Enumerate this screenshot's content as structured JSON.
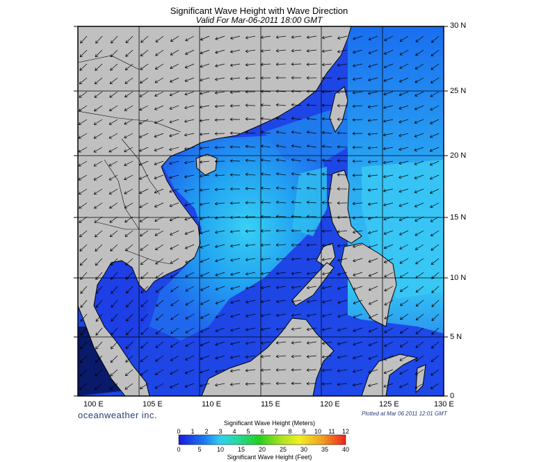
{
  "title": "Significant Wave Height with Wave Direction",
  "subtitle": "Valid For Mar-06-2011 18:00 GMT",
  "lat_labels": [
    "30 N",
    "25 N",
    "20 N",
    "15 N",
    "10 N",
    "5 N",
    "0"
  ],
  "lon_labels": [
    "100 E",
    "105 E",
    "110 E",
    "115 E",
    "120 E",
    "125 E",
    "130 E"
  ],
  "brand": "oceanweather inc.",
  "plotted": "Plotted at Mar 06 2011 12:01 GMT",
  "legend": {
    "title_meters": "Significant Wave Height (Meters)",
    "title_feet": "Significant Wave Height (Feet)",
    "meters_ticks": [
      "0",
      "1",
      "2",
      "3",
      "4",
      "5",
      "6",
      "7",
      "8",
      "9",
      "10",
      "11",
      "12"
    ],
    "feet_ticks": [
      "0",
      "5",
      "10",
      "15",
      "20",
      "25",
      "30",
      "35",
      "40"
    ]
  },
  "colors": {
    "land": "#c0c0c0",
    "coast": "#000000",
    "grid": "#000000",
    "deep_wave": "#1e3ce6",
    "mid_wave": "#1a78f0",
    "high_wave": "#30c8f0",
    "arrow": "#000000"
  },
  "map_extent": {
    "lon_min": 100,
    "lon_max": 130,
    "lat_min": 0,
    "lat_max": 30
  },
  "wave_direction": "mostly from northeast toward southwest"
}
